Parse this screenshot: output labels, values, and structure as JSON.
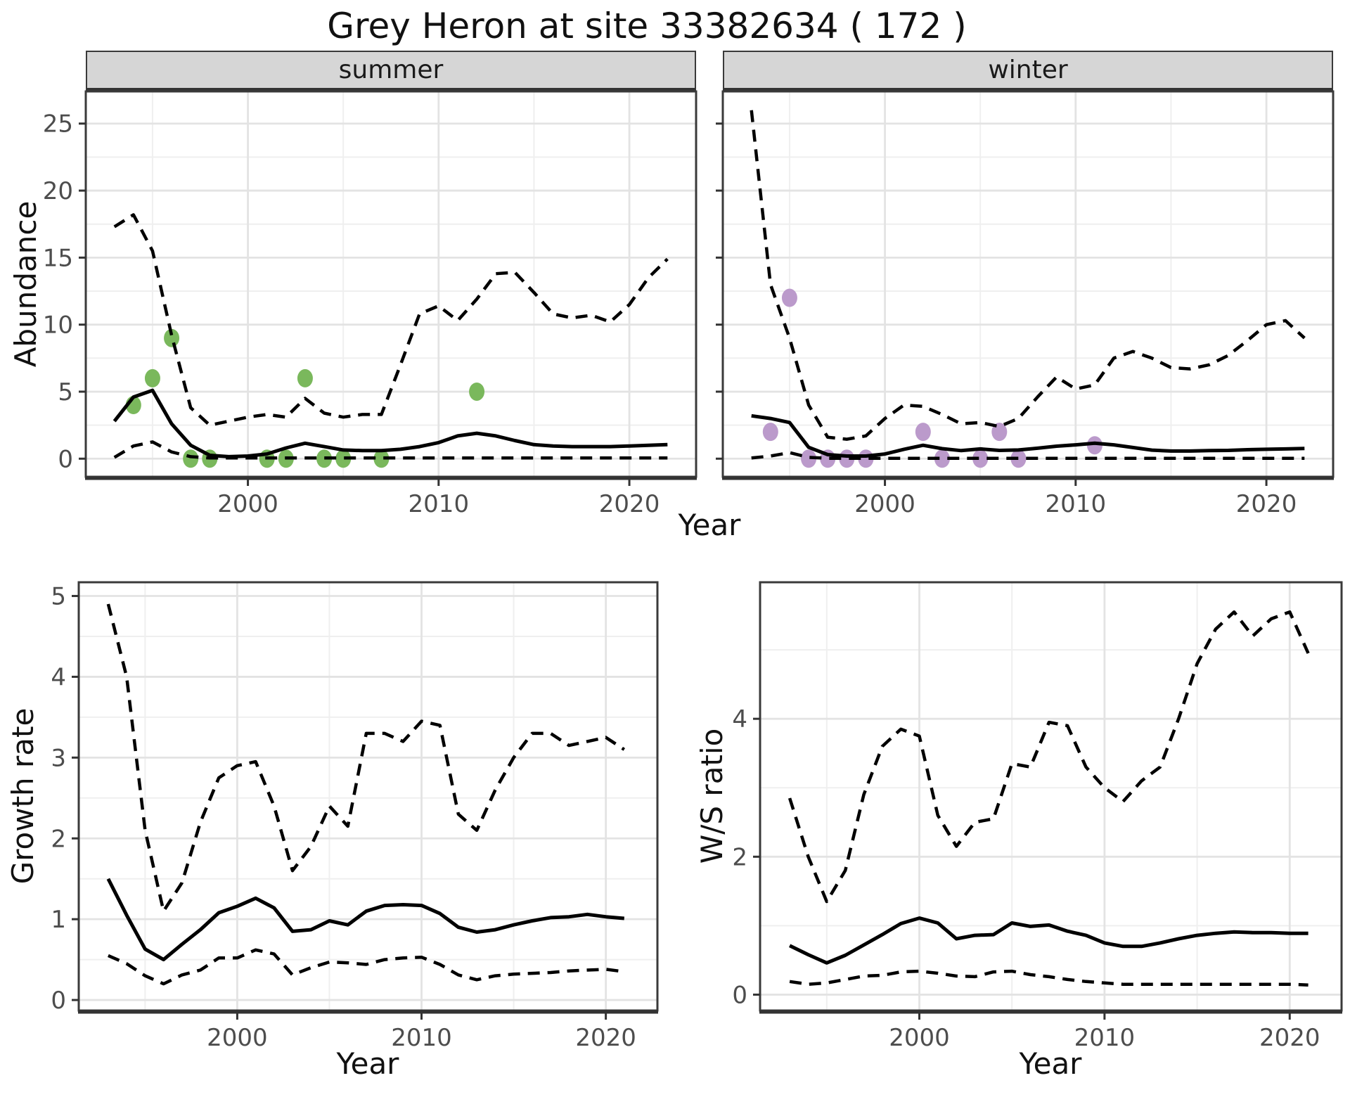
{
  "title": "Grey Heron at site 33382634 ( 172 )",
  "colors": {
    "summer_points": "#7ab85c",
    "winter_points": "#bb9acb",
    "line": "#000000",
    "strip_bg": "#d6d6d6",
    "grid_major": "#e3e3e3",
    "grid_minor": "#efefef",
    "panel_border": "#3a3a3a",
    "axis_line": "#333333",
    "tick_label": "#4d4d4d"
  },
  "chart_data": [
    {
      "id": "abundance_summer",
      "type": "line",
      "facet_label": "summer",
      "xlabel": "Year",
      "ylabel": "Abundance",
      "x": [
        1993,
        1994,
        1995,
        1996,
        1997,
        1998,
        1999,
        2000,
        2001,
        2002,
        2003,
        2004,
        2005,
        2006,
        2007,
        2008,
        2009,
        2010,
        2011,
        2012,
        2013,
        2014,
        2015,
        2016,
        2017,
        2018,
        2019,
        2020,
        2021,
        2022
      ],
      "series": [
        {
          "name": "median",
          "style": "solid",
          "values": [
            2.8,
            4.6,
            5.1,
            2.6,
            1.0,
            0.25,
            0.15,
            0.2,
            0.35,
            0.8,
            1.15,
            0.9,
            0.65,
            0.6,
            0.6,
            0.7,
            0.9,
            1.2,
            1.7,
            1.9,
            1.7,
            1.35,
            1.05,
            0.95,
            0.9,
            0.9,
            0.9,
            0.95,
            1.0,
            1.05
          ]
        },
        {
          "name": "upper_ci",
          "style": "dashed",
          "values": [
            17.3,
            18.2,
            15.5,
            9.2,
            3.8,
            2.5,
            2.8,
            3.1,
            3.3,
            3.1,
            4.5,
            3.4,
            3.1,
            3.3,
            3.3,
            7.0,
            10.8,
            11.4,
            10.3,
            11.9,
            13.8,
            13.9,
            12.4,
            10.8,
            10.5,
            10.7,
            10.2,
            11.5,
            13.5,
            14.9
          ]
        },
        {
          "name": "lower_ci",
          "style": "dashed",
          "values": [
            0.1,
            0.95,
            1.25,
            0.5,
            0.15,
            0.05,
            0.05,
            0.05,
            0.05,
            0.05,
            0.05,
            0.05,
            0.05,
            0.05,
            0.05,
            0.05,
            0.05,
            0.05,
            0.05,
            0.05,
            0.05,
            0.05,
            0.05,
            0.05,
            0.05,
            0.05,
            0.05,
            0.05,
            0.05,
            0.05
          ]
        }
      ],
      "observations": {
        "name": "summer_counts",
        "color": "#7ab85c",
        "points": [
          [
            1994,
            4
          ],
          [
            1995,
            6
          ],
          [
            1996,
            9
          ],
          [
            1997,
            0
          ],
          [
            1998,
            0
          ],
          [
            2001,
            0
          ],
          [
            2002,
            0
          ],
          [
            2003,
            6
          ],
          [
            2004,
            0
          ],
          [
            2005,
            0
          ],
          [
            2007,
            0
          ],
          [
            2012,
            5
          ]
        ]
      },
      "xlim": [
        1991.5,
        2023.5
      ],
      "ylim": [
        -1.35,
        27.4
      ],
      "x_ticks": [
        2000,
        2010,
        2020
      ],
      "x_minor": [
        1995,
        2005,
        2015
      ],
      "y_ticks": [
        0,
        5,
        10,
        15,
        20,
        25
      ],
      "y_minor": [
        2.5,
        7.5,
        12.5,
        17.5,
        22.5
      ],
      "grid": true,
      "legend": "none"
    },
    {
      "id": "abundance_winter",
      "type": "line",
      "facet_label": "winter",
      "xlabel": "Year",
      "ylabel": "Abundance",
      "x": [
        1993,
        1994,
        1995,
        1996,
        1997,
        1998,
        1999,
        2000,
        2001,
        2002,
        2003,
        2004,
        2005,
        2006,
        2007,
        2008,
        2009,
        2010,
        2011,
        2012,
        2013,
        2014,
        2015,
        2016,
        2017,
        2018,
        2019,
        2020,
        2021,
        2022
      ],
      "series": [
        {
          "name": "median",
          "style": "solid",
          "values": [
            3.2,
            3.0,
            2.7,
            0.85,
            0.3,
            0.2,
            0.2,
            0.35,
            0.7,
            1.0,
            0.75,
            0.6,
            0.73,
            0.62,
            0.65,
            0.78,
            0.93,
            1.03,
            1.15,
            1.03,
            0.83,
            0.64,
            0.57,
            0.57,
            0.6,
            0.62,
            0.67,
            0.7,
            0.73,
            0.76
          ]
        },
        {
          "name": "upper_ci",
          "style": "dashed",
          "values": [
            26.0,
            13.0,
            9.0,
            4.0,
            1.6,
            1.45,
            1.7,
            3.0,
            4.0,
            3.9,
            3.3,
            2.6,
            2.7,
            2.4,
            3.0,
            4.6,
            6.1,
            5.2,
            5.5,
            7.5,
            8.0,
            7.5,
            6.8,
            6.7,
            7.0,
            7.7,
            8.8,
            10.0,
            10.3,
            9.0
          ]
        },
        {
          "name": "lower_ci",
          "style": "dashed",
          "values": [
            0.05,
            0.2,
            0.45,
            0.1,
            0.03,
            0.03,
            0.03,
            0.03,
            0.03,
            0.03,
            0.03,
            0.03,
            0.03,
            0.03,
            0.03,
            0.03,
            0.03,
            0.03,
            0.03,
            0.03,
            0.03,
            0.03,
            0.03,
            0.03,
            0.03,
            0.03,
            0.03,
            0.03,
            0.03,
            0.03
          ]
        }
      ],
      "observations": {
        "name": "winter_counts",
        "color": "#bb9acb",
        "points": [
          [
            1994,
            2
          ],
          [
            1995,
            12
          ],
          [
            1996,
            0
          ],
          [
            1997,
            0
          ],
          [
            1998,
            0
          ],
          [
            1999,
            0
          ],
          [
            2002,
            2
          ],
          [
            2003,
            0
          ],
          [
            2005,
            0
          ],
          [
            2006,
            2
          ],
          [
            2007,
            0
          ],
          [
            2011,
            1
          ]
        ]
      },
      "xlim": [
        1991.5,
        2023.5
      ],
      "ylim": [
        -1.35,
        27.4
      ],
      "x_ticks": [
        2000,
        2010,
        2020
      ],
      "x_minor": [
        1995,
        2005,
        2015
      ],
      "y_ticks": [
        0,
        5,
        10,
        15,
        20,
        25
      ],
      "y_minor": [
        2.5,
        7.5,
        12.5,
        17.5,
        22.5
      ],
      "grid": true,
      "legend": "none"
    },
    {
      "id": "growth_rate",
      "type": "line",
      "facet_label": null,
      "xlabel": "Year",
      "ylabel": "Growth rate",
      "x": [
        1993,
        1994,
        1995,
        1996,
        1997,
        1998,
        1999,
        2000,
        2001,
        2002,
        2003,
        2004,
        2005,
        2006,
        2007,
        2008,
        2009,
        2010,
        2011,
        2012,
        2013,
        2014,
        2015,
        2016,
        2017,
        2018,
        2019,
        2020,
        2021
      ],
      "series": [
        {
          "name": "median",
          "style": "solid",
          "values": [
            1.5,
            1.05,
            0.63,
            0.5,
            0.69,
            0.87,
            1.08,
            1.16,
            1.26,
            1.14,
            0.85,
            0.87,
            0.98,
            0.93,
            1.1,
            1.17,
            1.18,
            1.17,
            1.07,
            0.9,
            0.84,
            0.87,
            0.93,
            0.98,
            1.02,
            1.03,
            1.06,
            1.03,
            1.01
          ]
        },
        {
          "name": "upper_ci",
          "style": "dashed",
          "values": [
            4.9,
            4.0,
            2.1,
            1.1,
            1.45,
            2.2,
            2.75,
            2.9,
            2.95,
            2.4,
            1.6,
            1.9,
            2.4,
            2.15,
            3.3,
            3.3,
            3.2,
            3.45,
            3.4,
            2.3,
            2.1,
            2.6,
            3.0,
            3.3,
            3.3,
            3.15,
            3.2,
            3.25,
            3.1
          ]
        },
        {
          "name": "lower_ci",
          "style": "dashed",
          "values": [
            0.55,
            0.45,
            0.3,
            0.2,
            0.31,
            0.37,
            0.52,
            0.52,
            0.62,
            0.57,
            0.31,
            0.4,
            0.47,
            0.46,
            0.44,
            0.5,
            0.52,
            0.53,
            0.44,
            0.31,
            0.25,
            0.3,
            0.32,
            0.33,
            0.34,
            0.36,
            0.37,
            0.38,
            0.35
          ]
        }
      ],
      "observations": null,
      "xlim": [
        1991.4,
        2022.8
      ],
      "ylim": [
        -0.13,
        5.17
      ],
      "x_ticks": [
        2000,
        2010,
        2020
      ],
      "x_minor": [
        1995,
        2005,
        2015
      ],
      "y_ticks": [
        0,
        1,
        2,
        3,
        4,
        5
      ],
      "y_minor": [
        0.5,
        1.5,
        2.5,
        3.5,
        4.5
      ],
      "grid": true,
      "legend": "none"
    },
    {
      "id": "ws_ratio",
      "type": "line",
      "facet_label": null,
      "xlabel": "Year",
      "ylabel": "W/S ratio",
      "x": [
        1993,
        1994,
        1995,
        1996,
        1997,
        1998,
        1999,
        2000,
        2001,
        2002,
        2003,
        2004,
        2005,
        2006,
        2007,
        2008,
        2009,
        2010,
        2011,
        2012,
        2013,
        2014,
        2015,
        2016,
        2017,
        2018,
        2019,
        2020,
        2021
      ],
      "series": [
        {
          "name": "median",
          "style": "solid",
          "values": [
            0.71,
            0.58,
            0.46,
            0.57,
            0.72,
            0.87,
            1.03,
            1.11,
            1.04,
            0.81,
            0.86,
            0.87,
            1.04,
            0.99,
            1.01,
            0.92,
            0.86,
            0.75,
            0.7,
            0.7,
            0.75,
            0.81,
            0.86,
            0.89,
            0.91,
            0.9,
            0.9,
            0.89,
            0.89
          ]
        },
        {
          "name": "upper_ci",
          "style": "dashed",
          "values": [
            2.85,
            2.0,
            1.35,
            1.8,
            2.9,
            3.6,
            3.85,
            3.75,
            2.6,
            2.15,
            2.5,
            2.55,
            3.35,
            3.3,
            3.95,
            3.9,
            3.3,
            3.0,
            2.8,
            3.1,
            3.3,
            4.0,
            4.8,
            5.3,
            5.55,
            5.2,
            5.45,
            5.55,
            4.95
          ]
        },
        {
          "name": "lower_ci",
          "style": "dashed",
          "values": [
            0.19,
            0.15,
            0.17,
            0.22,
            0.27,
            0.28,
            0.33,
            0.34,
            0.31,
            0.27,
            0.26,
            0.33,
            0.34,
            0.29,
            0.26,
            0.22,
            0.19,
            0.17,
            0.15,
            0.15,
            0.15,
            0.15,
            0.15,
            0.15,
            0.15,
            0.15,
            0.15,
            0.15,
            0.14
          ]
        }
      ],
      "observations": null,
      "xlim": [
        1991.4,
        2022.8
      ],
      "ylim": [
        -0.23,
        5.98
      ],
      "x_ticks": [
        2000,
        2010,
        2020
      ],
      "x_minor": [
        1995,
        2005,
        2015
      ],
      "y_ticks": [
        0,
        2,
        4
      ],
      "y_minor": [
        1,
        3,
        5
      ],
      "grid": true,
      "legend": "none"
    }
  ]
}
